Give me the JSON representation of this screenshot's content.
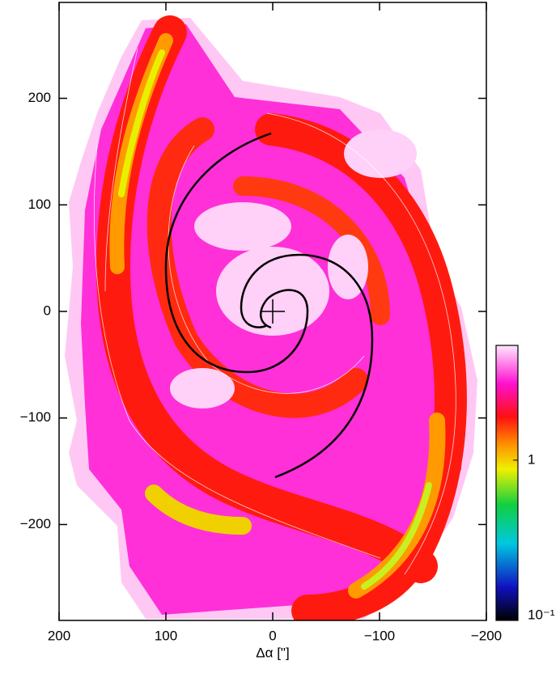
{
  "chart_data": {
    "type": "image",
    "xlabel": "Δα [\"]",
    "xlim": [
      200,
      -200
    ],
    "xticks": [
      200,
      100,
      0,
      {
        "value": -100,
        "label": "−100"
      },
      {
        "value": -200,
        "label": "−200"
      }
    ],
    "ylim": [
      -290,
      290
    ],
    "yticks": [
      {
        "value": -200,
        "label": "−200"
      },
      {
        "value": -100,
        "label": "−100"
      },
      0,
      100,
      200
    ],
    "colorbar": {
      "log": true,
      "lim": [
        0.1,
        5.2
      ],
      "ticks": [
        {
          "value": 0.1,
          "label": "10⁻¹"
        },
        1
      ]
    }
  }
}
